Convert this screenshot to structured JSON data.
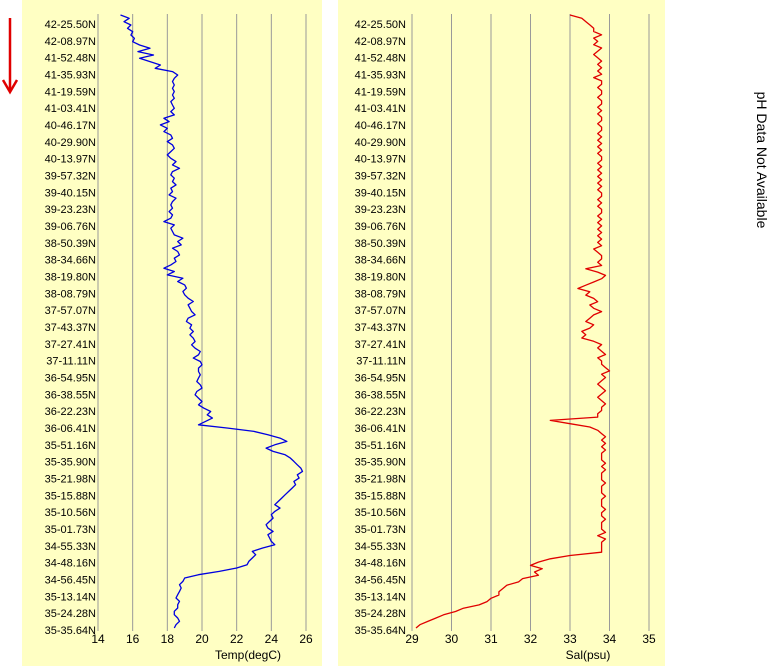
{
  "latitude_ticks": [
    "42-25.50N",
    "42-08.97N",
    "41-52.48N",
    "41-35.93N",
    "41-19.59N",
    "41-03.41N",
    "40-46.17N",
    "40-29.90N",
    "40-13.97N",
    "39-57.32N",
    "39-40.15N",
    "39-23.23N",
    "39-06.76N",
    "38-50.39N",
    "38-34.66N",
    "38-19.80N",
    "38-08.79N",
    "37-57.07N",
    "37-43.37N",
    "37-27.41N",
    "37-11.11N",
    "36-54.95N",
    "36-38.55N",
    "36-22.23N",
    "36-06.41N",
    "35-51.16N",
    "35-35.90N",
    "35-21.98N",
    "35-15.88N",
    "35-10.56N",
    "35-01.73N",
    "34-55.33N",
    "34-48.16N",
    "34-56.45N",
    "35-13.14N",
    "35-24.28N",
    "35-35.64N"
  ],
  "side_note": "pH Data Not Available",
  "colors": {
    "panel_bg": "#ffffc3",
    "temp_line": "#0000e0",
    "sal_line": "#e00000",
    "arrow": "#e00000",
    "grid": "#9a9a9a"
  },
  "icons": {
    "direction_arrow": "down-arrow-icon"
  },
  "chart_data": [
    {
      "type": "line",
      "xlabel": "Temp(degC)",
      "ylabel": "",
      "xlim": [
        14,
        26
      ],
      "x_ticks": [
        "14",
        "16",
        "18",
        "20",
        "22",
        "24",
        "26"
      ],
      "y_categories_ref": "latitude_ticks",
      "y_direction": "top-to-bottom",
      "grid": true,
      "series": [
        {
          "values": [
            15.3,
            15.8,
            15.5,
            15.9,
            15.7,
            16.0,
            15.9,
            16.1,
            16.0,
            16.4,
            17.0,
            16.3,
            17.2,
            16.4,
            17.0,
            17.6,
            17.3,
            18.3,
            18.6,
            18.4,
            18.3,
            18.4,
            18.3,
            18.4,
            18.3,
            18.4,
            18.2,
            18.3,
            18.4,
            18.2,
            18.4,
            17.8,
            18.1,
            17.6,
            18.0,
            17.8,
            18.2,
            18.3,
            18.0,
            18.3,
            18.4,
            18.2,
            18.0,
            18.2,
            18.5,
            18.3,
            18.7,
            18.3,
            18.2,
            18.4,
            18.3,
            18.5,
            18.2,
            18.3,
            18.1,
            18.5,
            18.3,
            18.2,
            18.3,
            18.1,
            18.3,
            18.2,
            17.8,
            18.4,
            18.2,
            18.3,
            18.4,
            18.9,
            18.6,
            18.8,
            18.3,
            18.6,
            18.7,
            18.4,
            18.5,
            18.2,
            17.8,
            18.4,
            18.0,
            18.9,
            18.6,
            19.0,
            19.1,
            18.9,
            19.0,
            19.2,
            19.5,
            19.2,
            19.3,
            19.4,
            19.6,
            19.2,
            19.1,
            19.4,
            19.3,
            19.5,
            19.3,
            19.5,
            19.6,
            19.4,
            19.6,
            19.9,
            19.8,
            19.5,
            19.9,
            20.0,
            19.8,
            19.8,
            19.9,
            19.8,
            19.7,
            19.9,
            20.0,
            19.7,
            19.6,
            19.8,
            20.0,
            19.8,
            20.1,
            20.5,
            20.3,
            20.6,
            20.2,
            19.8,
            21.5,
            23.0,
            23.8,
            24.5,
            24.9,
            24.2,
            23.7,
            24.1,
            24.8,
            25.1,
            25.3,
            25.5,
            25.7,
            25.8,
            25.5,
            25.6,
            25.3,
            25.4,
            25.2,
            25.0,
            24.8,
            24.6,
            24.4,
            24.2,
            24.5,
            24.2,
            24.0,
            24.1,
            23.9,
            23.7,
            23.8,
            24.1,
            23.8,
            23.9,
            24.0,
            24.2,
            23.5,
            22.9,
            23.1,
            22.9,
            22.7,
            22.6,
            22.0,
            21.0,
            19.8,
            19.0,
            18.9,
            18.7,
            18.8,
            18.7,
            18.6,
            18.5,
            18.7,
            18.6,
            18.6,
            18.4,
            18.4,
            18.6,
            18.7,
            18.5,
            18.4
          ]
        }
      ]
    },
    {
      "type": "line",
      "xlabel": "Sal(psu)",
      "ylabel": "",
      "xlim": [
        29,
        35
      ],
      "x_ticks": [
        "29",
        "30",
        "31",
        "32",
        "33",
        "34",
        "35"
      ],
      "y_categories_ref": "latitude_ticks",
      "y_direction": "top-to-bottom",
      "grid": true,
      "series": [
        {
          "values": [
            33.0,
            33.3,
            33.4,
            33.5,
            33.6,
            33.6,
            33.8,
            33.6,
            33.7,
            33.6,
            33.8,
            33.7,
            33.6,
            33.7,
            33.8,
            33.7,
            33.8,
            33.7,
            33.8,
            33.6,
            33.8,
            33.8,
            33.7,
            33.8,
            33.8,
            33.7,
            33.8,
            33.8,
            33.7,
            33.8,
            33.7,
            33.8,
            33.8,
            33.7,
            33.8,
            33.8,
            33.7,
            33.8,
            33.7,
            33.8,
            33.7,
            33.8,
            33.7,
            33.8,
            33.8,
            33.7,
            33.8,
            33.7,
            33.8,
            33.7,
            33.8,
            33.7,
            33.8,
            33.7,
            33.8,
            33.8,
            33.7,
            33.8,
            33.7,
            33.8,
            33.8,
            33.7,
            33.8,
            33.7,
            33.8,
            33.7,
            33.8,
            33.7,
            33.8,
            33.7,
            33.8,
            33.6,
            33.7,
            33.8,
            33.8,
            33.7,
            33.8,
            33.4,
            33.7,
            33.9,
            33.8,
            33.6,
            33.4,
            33.2,
            33.5,
            33.4,
            33.6,
            33.7,
            33.5,
            33.6,
            33.8,
            33.6,
            33.5,
            33.4,
            33.6,
            33.5,
            33.3,
            33.4,
            33.3,
            33.6,
            33.8,
            33.7,
            33.8,
            33.9,
            33.7,
            33.8,
            33.8,
            33.9,
            34.0,
            33.8,
            33.9,
            33.8,
            33.7,
            33.8,
            33.9,
            33.8,
            33.7,
            33.8,
            33.9,
            33.8,
            33.8,
            33.7,
            33.7,
            32.5,
            33.0,
            33.5,
            33.7,
            33.8,
            33.9,
            33.8,
            33.9,
            33.8,
            33.9,
            33.8,
            33.8,
            33.8,
            33.9,
            33.8,
            33.9,
            33.8,
            33.8,
            33.8,
            33.9,
            33.8,
            33.8,
            33.8,
            33.9,
            33.8,
            33.8,
            33.8,
            33.9,
            33.8,
            33.8,
            33.9,
            33.8,
            33.8,
            33.8,
            33.9,
            33.7,
            33.9,
            33.8,
            33.8,
            33.8,
            33.8,
            33.0,
            32.5,
            32.2,
            32.0,
            32.3,
            32.1,
            32.2,
            31.8,
            31.7,
            31.4,
            31.3,
            31.2,
            31.2,
            31.0,
            30.9,
            30.7,
            30.3,
            30.1,
            29.8,
            29.6,
            29.4,
            29.2,
            29.1
          ]
        }
      ]
    }
  ]
}
